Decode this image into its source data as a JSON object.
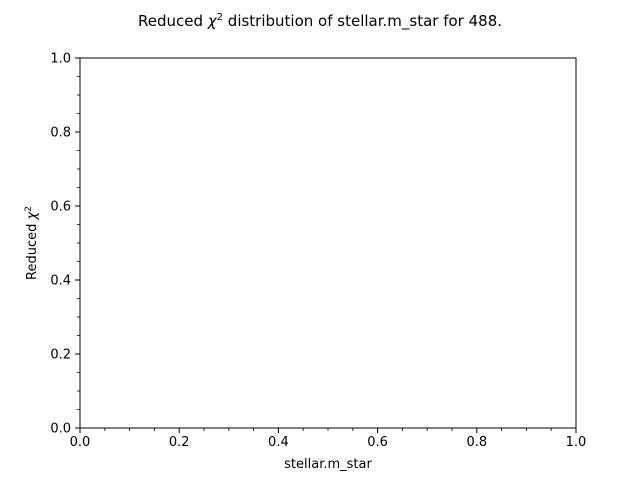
{
  "chart_data": {
    "type": "scatter",
    "title": {
      "prefix": "Reduced ",
      "symbol": "χ",
      "superscript": "2",
      "suffix": " distribution of stellar.m_star for 488."
    },
    "xlabel": "stellar.m_star",
    "ylabel": {
      "prefix": "Reduced ",
      "symbol": "χ",
      "superscript": "2"
    },
    "xlim": [
      0.0,
      1.0
    ],
    "ylim": [
      0.0,
      1.0
    ],
    "x_ticks": [
      0.0,
      0.2,
      0.4,
      0.6,
      0.8,
      1.0
    ],
    "y_ticks": [
      0.0,
      0.2,
      0.4,
      0.6,
      0.8,
      1.0
    ],
    "x_tick_labels": [
      "0.0",
      "0.2",
      "0.4",
      "0.6",
      "0.8",
      "1.0"
    ],
    "y_tick_labels": [
      "0.0",
      "0.2",
      "0.4",
      "0.6",
      "0.8",
      "1.0"
    ],
    "minor_ticks": true,
    "grid": false,
    "series": [
      {
        "x": [],
        "y": []
      }
    ]
  }
}
